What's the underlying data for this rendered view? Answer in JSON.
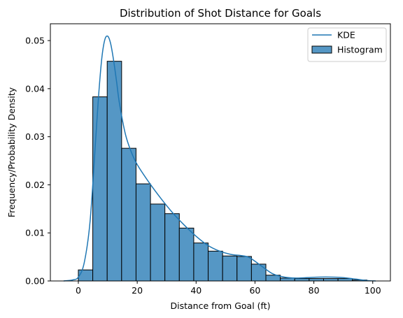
{
  "chart_data": {
    "type": "bar",
    "title": "Distribution of Shot Distance for Goals",
    "xlabel": "Distance from Goal (ft)",
    "ylabel": "Frequency/Probability Density",
    "xlim": [
      -9.5,
      106
    ],
    "ylim": [
      0,
      0.0535
    ],
    "xticks": [
      0,
      20,
      40,
      60,
      80,
      100
    ],
    "yticks": [
      0.0,
      0.01,
      0.02,
      0.03,
      0.04,
      0.05
    ],
    "ytick_labels": [
      "0.00",
      "0.01",
      "0.02",
      "0.03",
      "0.04",
      "0.05"
    ],
    "grid": false,
    "legend": {
      "position": "top-right",
      "entries": [
        "KDE",
        "Histogram"
      ]
    },
    "colors": {
      "bar_fill": "#5597c5",
      "bar_edge": "#000000",
      "kde_line": "#1f77b4"
    },
    "histogram": {
      "bin_edges": [
        0,
        4.9,
        9.8,
        14.7,
        19.6,
        24.5,
        29.4,
        34.3,
        39.2,
        44.1,
        49.0,
        53.9,
        58.8,
        63.7,
        68.6,
        73.5,
        78.4,
        83.3,
        88.2,
        93.1,
        98.0
      ],
      "density": [
        0.0023,
        0.0383,
        0.0457,
        0.0276,
        0.0202,
        0.016,
        0.014,
        0.011,
        0.0079,
        0.0062,
        0.0052,
        0.0051,
        0.0035,
        0.0012,
        0.0006,
        0.0005,
        0.0005,
        0.0005,
        0.0005,
        0.0002
      ]
    },
    "kde": {
      "x": [
        -5,
        -2,
        0,
        2,
        4,
        6,
        7,
        8,
        9,
        10,
        11,
        12,
        13,
        14,
        16,
        18,
        20,
        24,
        28,
        32,
        36,
        40,
        44,
        48,
        52,
        55,
        58,
        62,
        66,
        70,
        74,
        78,
        82,
        86,
        90,
        94,
        98,
        101
      ],
      "y": [
        0.0,
        0.0002,
        0.0008,
        0.0038,
        0.0125,
        0.0305,
        0.0395,
        0.0465,
        0.0502,
        0.0509,
        0.0493,
        0.0458,
        0.0414,
        0.0368,
        0.0305,
        0.0268,
        0.0242,
        0.0205,
        0.0172,
        0.0142,
        0.0116,
        0.0093,
        0.0074,
        0.0062,
        0.0055,
        0.0053,
        0.0049,
        0.0032,
        0.0015,
        0.0008,
        0.0006,
        0.0007,
        0.0008,
        0.0008,
        0.0007,
        0.0004,
        0.0001,
        0.0
      ]
    }
  }
}
